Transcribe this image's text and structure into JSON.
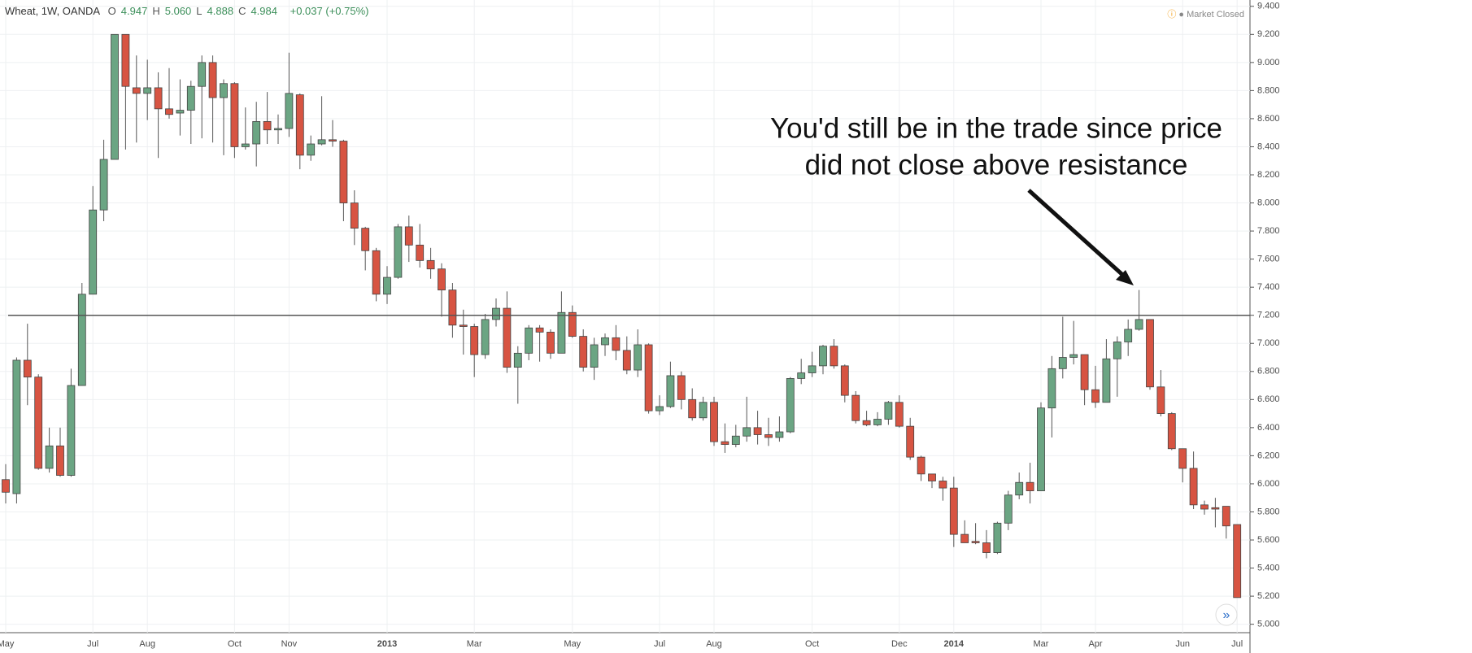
{
  "chart_data": {
    "type": "candlestick",
    "title": "Wheat, 1W, OANDA",
    "quote": [
      {
        "key": "O",
        "value": "4.947"
      },
      {
        "key": "H",
        "value": "5.060"
      },
      {
        "key": "L",
        "value": "4.888"
      },
      {
        "key": "C",
        "value": "4.984"
      }
    ],
    "change": "+0.037 (+0.75%)",
    "status": "Market Closed",
    "annotation": [
      "You'd still be in the trade since price",
      "did not close above resistance"
    ],
    "resistance": 7.2,
    "up_color": "#6ba583",
    "down_color": "#d75442",
    "grid": true,
    "categories": [
      "May",
      null,
      null,
      null,
      null,
      null,
      null,
      null,
      "Jul",
      null,
      null,
      null,
      null,
      "Aug",
      null,
      null,
      null,
      null,
      null,
      null,
      null,
      "Oct",
      null,
      null,
      null,
      null,
      "Nov",
      null,
      null,
      null,
      null,
      null,
      null,
      null,
      null,
      "2013",
      null,
      null,
      null,
      null,
      null,
      null,
      null,
      "Mar",
      null,
      null,
      null,
      null,
      null,
      null,
      null,
      null,
      "May",
      null,
      null,
      null,
      null,
      null,
      null,
      null,
      "Jul",
      null,
      null,
      null,
      null,
      "Aug",
      null,
      null,
      null,
      null,
      null,
      null,
      null,
      null,
      "Oct",
      null,
      null,
      null,
      null,
      null,
      null,
      null,
      "Dec",
      null,
      null,
      null,
      null,
      "2014",
      null,
      null,
      null,
      null,
      null,
      null,
      null,
      "Mar",
      null,
      null,
      null,
      null,
      "Apr",
      null,
      null,
      null,
      null,
      null,
      null,
      null,
      "Jun",
      null,
      null,
      null,
      null,
      "Jul"
    ],
    "open": [
      6.03,
      5.93,
      6.88,
      6.76,
      6.11,
      6.27,
      6.06,
      6.7,
      7.35,
      7.95,
      8.31,
      9.2,
      8.82,
      8.78,
      8.82,
      8.67,
      8.64,
      8.66,
      8.83,
      9.0,
      8.75,
      8.85,
      8.4,
      8.42,
      8.58,
      8.52,
      8.53,
      8.77,
      8.34,
      8.42,
      8.45,
      8.44,
      8.0,
      7.82,
      7.66,
      7.35,
      7.47,
      7.83,
      7.7,
      7.59,
      7.53,
      7.38,
      7.13,
      7.12,
      6.92,
      7.17,
      7.25,
      6.83,
      6.93,
      7.11,
      7.08,
      6.93,
      7.22,
      7.05,
      6.83,
      6.99,
      7.04,
      6.95,
      6.81,
      6.99,
      6.52,
      6.55,
      6.77,
      6.6,
      6.47,
      6.58,
      6.3,
      6.28,
      6.34,
      6.4,
      6.35,
      6.33,
      6.37,
      6.75,
      6.79,
      6.84,
      6.98,
      6.84,
      6.63,
      6.45,
      6.42,
      6.46,
      6.58,
      6.41,
      6.19,
      6.07,
      6.02,
      5.97,
      5.64,
      5.59,
      5.58,
      5.51,
      5.72,
      5.92,
      6.01,
      5.95,
      6.54,
      6.82,
      6.9,
      6.92,
      6.67,
      6.58,
      6.89,
      7.01,
      7.1,
      7.17,
      6.69,
      6.5,
      6.25,
      6.11,
      5.85,
      5.83,
      5.84,
      5.71
    ],
    "high": [
      6.14,
      6.9,
      7.14,
      6.78,
      6.4,
      6.4,
      6.82,
      7.43,
      8.12,
      8.45,
      9.2,
      9.2,
      9.05,
      9.02,
      8.93,
      8.96,
      8.88,
      8.87,
      9.05,
      9.05,
      8.88,
      8.86,
      8.68,
      8.72,
      8.79,
      8.63,
      9.07,
      8.78,
      8.48,
      8.76,
      8.59,
      8.45,
      8.09,
      7.83,
      7.68,
      7.55,
      7.85,
      7.91,
      7.85,
      7.68,
      7.57,
      7.43,
      7.24,
      7.14,
      7.21,
      7.32,
      7.37,
      6.98,
      7.13,
      7.13,
      7.1,
      7.37,
      7.27,
      7.1,
      7.04,
      7.07,
      7.13,
      7.05,
      7.1,
      7.0,
      6.63,
      6.87,
      6.8,
      6.68,
      6.62,
      6.62,
      6.43,
      6.42,
      6.62,
      6.52,
      6.47,
      6.48,
      6.76,
      6.89,
      6.94,
      6.99,
      7.03,
      6.85,
      6.66,
      6.52,
      6.51,
      6.59,
      6.63,
      6.47,
      6.2,
      6.07,
      6.05,
      6.05,
      5.74,
      5.72,
      5.67,
      5.73,
      5.95,
      6.08,
      6.15,
      6.58,
      6.91,
      7.19,
      7.16,
      6.92,
      6.84,
      7.03,
      7.05,
      7.17,
      7.38,
      7.17,
      6.81,
      6.51,
      6.25,
      6.23,
      5.88,
      5.9,
      5.84,
      5.71
    ],
    "low": [
      5.86,
      5.86,
      6.56,
      6.1,
      6.08,
      6.05,
      6.05,
      6.7,
      7.35,
      7.87,
      8.31,
      8.38,
      8.43,
      8.59,
      8.32,
      8.6,
      8.48,
      8.42,
      8.46,
      8.43,
      8.34,
      8.32,
      8.38,
      8.26,
      8.42,
      8.42,
      8.47,
      8.24,
      8.3,
      8.41,
      8.4,
      7.87,
      7.7,
      7.52,
      7.3,
      7.28,
      7.46,
      7.58,
      7.54,
      7.46,
      7.19,
      7.04,
      6.92,
      6.76,
      6.89,
      7.12,
      6.79,
      6.57,
      6.88,
      6.87,
      6.89,
      6.93,
      7.04,
      6.8,
      6.74,
      6.91,
      6.88,
      6.78,
      6.76,
      6.5,
      6.49,
      6.54,
      6.53,
      6.45,
      6.45,
      6.27,
      6.22,
      6.26,
      6.3,
      6.28,
      6.27,
      6.3,
      6.36,
      6.71,
      6.76,
      6.78,
      6.82,
      6.58,
      6.43,
      6.41,
      6.41,
      6.42,
      6.4,
      6.17,
      6.02,
      5.97,
      5.88,
      5.55,
      5.58,
      5.57,
      5.47,
      5.5,
      5.67,
      5.89,
      5.86,
      5.95,
      6.33,
      6.75,
      6.85,
      6.56,
      6.54,
      6.58,
      6.62,
      6.91,
      7.09,
      6.67,
      6.48,
      6.24,
      6.01,
      5.82,
      5.78,
      5.69,
      5.61,
      5.19
    ],
    "close": [
      5.94,
      6.88,
      6.76,
      6.11,
      6.27,
      6.06,
      6.7,
      7.35,
      7.95,
      8.31,
      9.2,
      8.83,
      8.78,
      8.82,
      8.67,
      8.63,
      8.66,
      8.83,
      9.0,
      8.75,
      8.85,
      8.4,
      8.42,
      8.58,
      8.52,
      8.53,
      8.78,
      8.34,
      8.42,
      8.45,
      8.44,
      8.0,
      7.82,
      7.66,
      7.35,
      7.47,
      7.83,
      7.7,
      7.59,
      7.53,
      7.38,
      7.13,
      7.12,
      6.92,
      7.17,
      7.25,
      6.83,
      6.93,
      7.11,
      7.08,
      6.93,
      7.22,
      7.05,
      6.83,
      6.99,
      7.04,
      6.95,
      6.81,
      6.99,
      6.52,
      6.55,
      6.77,
      6.6,
      6.47,
      6.58,
      6.3,
      6.28,
      6.34,
      6.4,
      6.35,
      6.33,
      6.37,
      6.75,
      6.79,
      6.84,
      6.98,
      6.84,
      6.63,
      6.45,
      6.42,
      6.46,
      6.58,
      6.41,
      6.19,
      6.07,
      6.02,
      5.97,
      5.64,
      5.58,
      5.58,
      5.51,
      5.72,
      5.92,
      6.01,
      5.95,
      6.54,
      6.82,
      6.9,
      6.92,
      6.67,
      6.58,
      6.89,
      7.01,
      7.1,
      7.17,
      6.69,
      6.5,
      6.25,
      6.11,
      5.85,
      5.82,
      5.82,
      5.7,
      5.19
    ],
    "ylim": [
      4.94,
      9.445
    ],
    "yticks": [
      {
        "value": 5.0,
        "label": "5.000"
      },
      {
        "value": 5.2,
        "label": "5.200"
      },
      {
        "value": 5.4,
        "label": "5.400"
      },
      {
        "value": 5.6,
        "label": "5.600"
      },
      {
        "value": 5.8,
        "label": "5.800"
      },
      {
        "value": 6.0,
        "label": "6.000"
      },
      {
        "value": 6.2,
        "label": "6.200"
      },
      {
        "value": 6.4,
        "label": "6.400"
      },
      {
        "value": 6.6,
        "label": "6.600"
      },
      {
        "value": 6.8,
        "label": "6.800"
      },
      {
        "value": 7.0,
        "label": "7.000"
      },
      {
        "value": 7.2,
        "label": "7.200"
      },
      {
        "value": 7.4,
        "label": "7.400"
      },
      {
        "value": 7.6,
        "label": "7.600"
      },
      {
        "value": 7.8,
        "label": "7.800"
      },
      {
        "value": 8.0,
        "label": "8.000"
      },
      {
        "value": 8.2,
        "label": "8.200"
      },
      {
        "value": 8.4,
        "label": "8.400"
      },
      {
        "value": 8.6,
        "label": "8.600"
      },
      {
        "value": 8.8,
        "label": "8.800"
      },
      {
        "value": 9.0,
        "label": "9.000"
      },
      {
        "value": 9.2,
        "label": "9.200"
      },
      {
        "value": 9.4,
        "label": "9.400"
      }
    ]
  }
}
